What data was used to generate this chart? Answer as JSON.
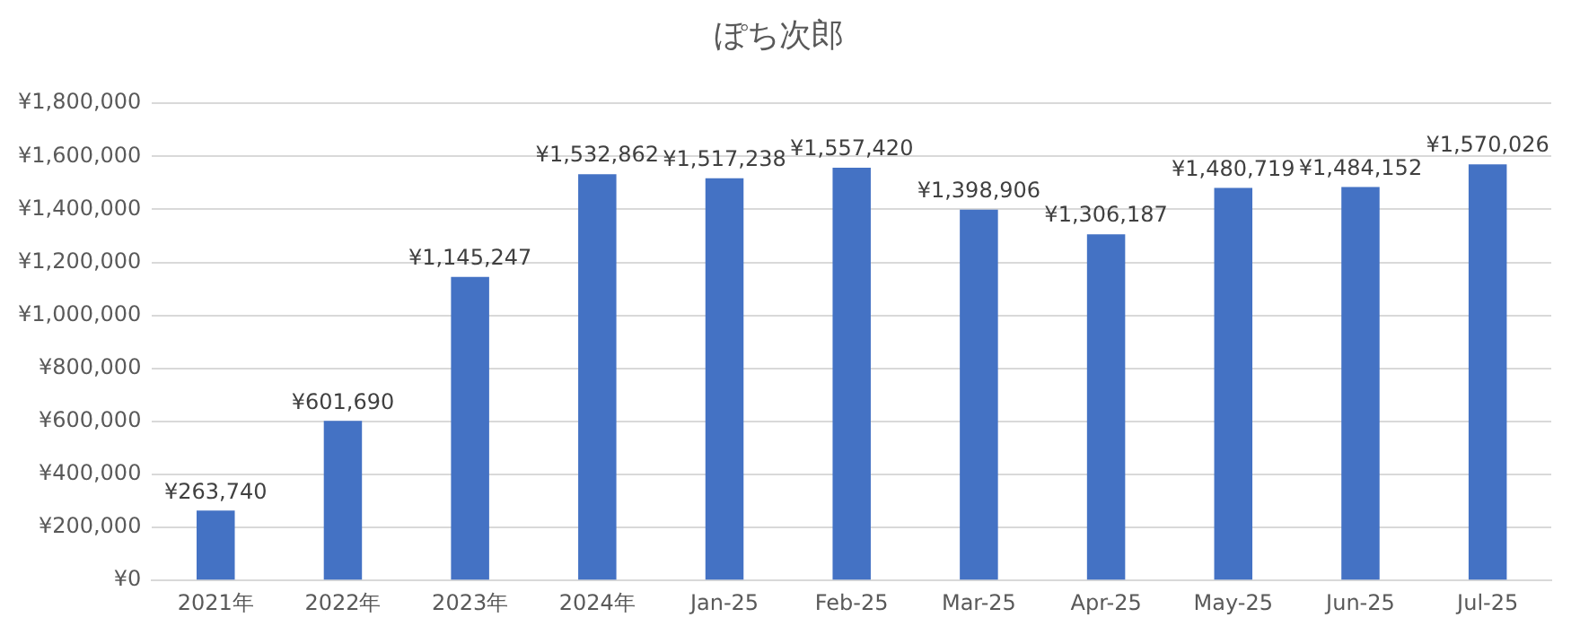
{
  "chart_data": {
    "type": "bar",
    "title": "ぽち次郎",
    "categories": [
      "2021年",
      "2022年",
      "2023年",
      "2024年",
      "Jan-25",
      "Feb-25",
      "Mar-25",
      "Apr-25",
      "May-25",
      "Jun-25",
      "Jul-25"
    ],
    "values": [
      263740,
      601690,
      1145247,
      1532862,
      1517238,
      1557420,
      1398906,
      1306187,
      1480719,
      1484152,
      1570026
    ],
    "value_labels": [
      "¥263,740",
      "¥601,690",
      "¥1,145,247",
      "¥1,532,862",
      "¥1,517,238",
      "¥1,557,420",
      "¥1,398,906",
      "¥1,306,187",
      "¥1,480,719",
      "¥1,484,152",
      "¥1,570,026"
    ],
    "color": "#4472c4",
    "ylim": [
      0,
      1800000
    ],
    "yticks": [
      {
        "value": 0,
        "label": "¥0"
      },
      {
        "value": 200000,
        "label": "¥200,000"
      },
      {
        "value": 400000,
        "label": "¥400,000"
      },
      {
        "value": 600000,
        "label": "¥600,000"
      },
      {
        "value": 800000,
        "label": "¥800,000"
      },
      {
        "value": 1000000,
        "label": "¥1,000,000"
      },
      {
        "value": 1200000,
        "label": "¥1,200,000"
      },
      {
        "value": 1400000,
        "label": "¥1,400,000"
      },
      {
        "value": 1600000,
        "label": "¥1,600,000"
      },
      {
        "value": 1800000,
        "label": "¥1,800,000"
      }
    ],
    "grid": "y",
    "legend": false
  }
}
